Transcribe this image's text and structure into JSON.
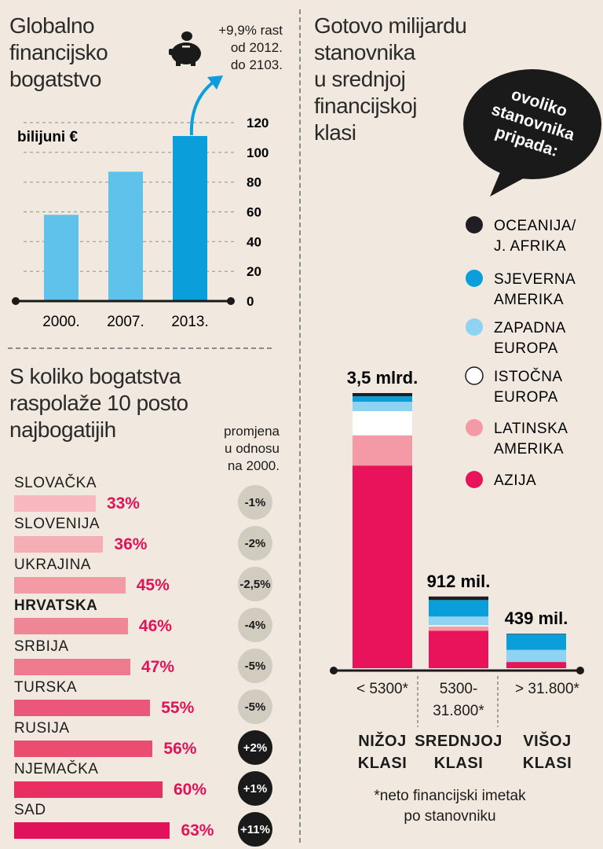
{
  "left_chart": {
    "title_lines": [
      "Globalno",
      "financijsko",
      "bogatstvo"
    ],
    "unit": "bilijuni €",
    "annotation_lines": [
      "+9,9% rast",
      "od 2012.",
      "do 2103."
    ],
    "icon": "piggy-bank-icon"
  },
  "wealth_section": {
    "title_lines": [
      "S koliko bogatstva",
      "raspolaže 10 posto",
      "najbogatijih"
    ],
    "change_header_lines": [
      "promjena",
      "u odnosu",
      "na 2000."
    ]
  },
  "right_chart": {
    "title_lines": [
      "Gotovo milijardu",
      "stanovnika",
      "u srednjoj",
      "financijskoj",
      "klasi"
    ],
    "bubble_lines": [
      "ovoliko",
      "stanovnika",
      "pripada:"
    ],
    "footnote_lines": [
      "*neto financijski imetak",
      "po stanovniku"
    ]
  },
  "colors": {
    "background": "#f1e9df",
    "bar_light": "#5ec2ea",
    "bar_dark": "#0a9fdb",
    "pink": "#e0135a",
    "axis": "#1a1a1a"
  },
  "chart_data": [
    {
      "type": "bar",
      "title": "Globalno financijsko bogatstvo",
      "ylabel": "bilijuni €",
      "categories": [
        "2000.",
        "2007.",
        "2013."
      ],
      "values": [
        58,
        87,
        111
      ],
      "ylim": [
        0,
        120
      ],
      "yticks": [
        0,
        20,
        40,
        60,
        80,
        100,
        120
      ]
    },
    {
      "type": "bar",
      "orientation": "horizontal",
      "title": "S koliko bogatstva raspolaže 10 posto najbogatijih",
      "categories": [
        "SLOVAČKA",
        "SLOVENIJA",
        "UKRAJINA",
        "HRVATSKA",
        "SRBIJA",
        "TURSKA",
        "RUSIJA",
        "NJEMAČKA",
        "SAD"
      ],
      "values": [
        33,
        36,
        45,
        46,
        47,
        55,
        56,
        60,
        63
      ],
      "value_labels": [
        "33%",
        "36%",
        "45%",
        "46%",
        "47%",
        "55%",
        "56%",
        "60%",
        "63%"
      ],
      "change_labels": [
        "-1%",
        "-2%",
        "-2,5%",
        "-4%",
        "-5%",
        "-5%",
        "+2%",
        "+1%",
        "+11%"
      ],
      "highlight": "HRVATSKA"
    },
    {
      "type": "bar",
      "stacked": true,
      "title": "Gotovo milijardu stanovnika u srednjoj financijskoj klasi",
      "categories": [
        "NIŽOJ KLASI",
        "SREDNJOJ KLASI",
        "VIŠOJ KLASI"
      ],
      "category_ranges": [
        "< 5300*",
        "5300-31.800*",
        "> 31.800*"
      ],
      "totals": [
        3500,
        912,
        439
      ],
      "total_labels": [
        "3,5 mlrd.",
        "912 mil.",
        "439 mil."
      ],
      "unit": "milijuni stanovnika",
      "series": [
        {
          "name": "AZIJA",
          "color": "#e8135a",
          "values": [
            2578,
            475,
            79
          ]
        },
        {
          "name": "LATINSKA AMERIKA",
          "color": "#f39aa6",
          "values": [
            384,
            56,
            0
          ]
        },
        {
          "name": "ISTOČNA EUROPA",
          "color": "#ffffff",
          "values": [
            308,
            14,
            0
          ]
        },
        {
          "name": "ZAPADNA EUROPA",
          "color": "#8fd3f2",
          "values": [
            119,
            112,
            154
          ]
        },
        {
          "name": "SJEVERNA AMERIKA",
          "color": "#0a9fdb",
          "values": [
            70,
            210,
            200
          ]
        },
        {
          "name": "OCEANIJA/ J. AFRIKA",
          "color": "#1e1e24",
          "values": [
            41,
            45,
            6
          ]
        }
      ],
      "legend_order": [
        "OCEANIJA/ J. AFRIKA",
        "SJEVERNA AMERIKA",
        "ZAPADNA EUROPA",
        "ISTOČNA EUROPA",
        "LATINSKA AMERIKA",
        "AZIJA"
      ]
    }
  ]
}
